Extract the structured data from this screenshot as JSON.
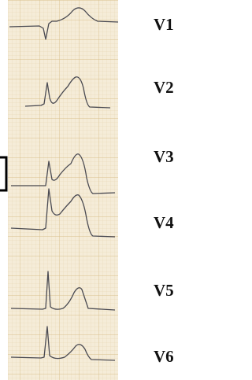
{
  "leads": [
    "V1",
    "V2",
    "V3",
    "V4",
    "V5",
    "V6"
  ]
}
